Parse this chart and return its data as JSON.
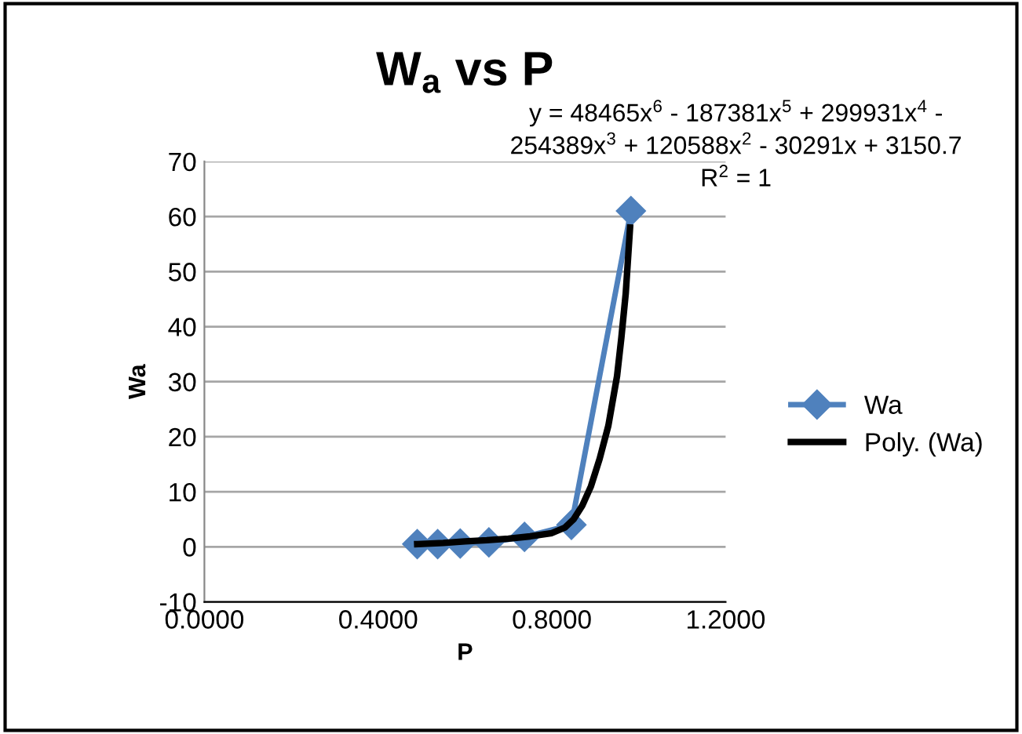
{
  "chart_data": {
    "type": "line",
    "title": "W$_{a}$ vs P",
    "xlabel": "P",
    "ylabel": "Wa",
    "series": [
      {
        "name": "Wa",
        "color": "#4f81bd",
        "marker": "diamond",
        "x": [
          0.49,
          0.537,
          0.589,
          0.655,
          0.737,
          0.845,
          0.982
        ],
        "values": [
          0.5,
          0.5,
          0.6,
          0.8,
          1.8,
          4,
          61
        ]
      },
      {
        "name": "Poly. (Wa)",
        "color": "#000000",
        "marker": "none",
        "x": [
          0.49,
          0.55,
          0.6,
          0.65,
          0.7,
          0.75,
          0.8,
          0.83,
          0.85,
          0.87,
          0.89,
          0.91,
          0.93,
          0.95,
          0.96,
          0.97,
          0.98
        ],
        "values": [
          0.5,
          0.7,
          1,
          1.2,
          1.5,
          1.9,
          2.5,
          3.5,
          5,
          7.5,
          11,
          16,
          22,
          31,
          38,
          46,
          58
        ]
      }
    ],
    "annotations": [
      "y = 48465x$^{6}$ - 187381x$^{5}$ + 299931x$^{4}$ -\n254389x$^{3}$ + 120588x$^{2}$ - 30291x + 3150.7\nR$^{2}$ = 1"
    ],
    "xlim": [
      0,
      1.2
    ],
    "xticks": [
      {
        "value": 0,
        "label": "0.0000"
      },
      {
        "value": 0.4,
        "label": "0.4000"
      },
      {
        "value": 0.8,
        "label": "0.8000"
      },
      {
        "value": 1.2,
        "label": "1.2000"
      }
    ],
    "ylim": [
      -10,
      70
    ],
    "yticks": [
      -10,
      0,
      10,
      20,
      30,
      40,
      50,
      60,
      70
    ],
    "grid": "y",
    "legend": "right",
    "line_style": "solid"
  }
}
